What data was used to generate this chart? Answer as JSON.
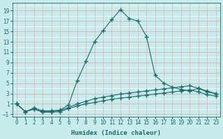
{
  "xlabel": "Humidex (Indice chaleur)",
  "background_color": "#c8ecec",
  "grid_color_major": "#dba8a8",
  "grid_color_minor": "#ffffff",
  "line_color": "#1a6b6b",
  "xlim": [
    -0.5,
    23.5
  ],
  "ylim": [
    -1.5,
    20.5
  ],
  "xticks": [
    0,
    1,
    2,
    3,
    4,
    5,
    6,
    7,
    8,
    9,
    10,
    11,
    12,
    13,
    14,
    15,
    16,
    17,
    18,
    19,
    20,
    21,
    22,
    23
  ],
  "yticks": [
    -1,
    1,
    3,
    5,
    7,
    9,
    11,
    13,
    15,
    17,
    19
  ],
  "line1_x": [
    0,
    1,
    2,
    3,
    4,
    5,
    6,
    7,
    8,
    9,
    10,
    11,
    12,
    13,
    14,
    15,
    16,
    17,
    18,
    19,
    20,
    21,
    22,
    23
  ],
  "line1_y": [
    1.0,
    -0.5,
    0.2,
    -0.3,
    -0.3,
    -0.2,
    0.8,
    5.5,
    9.2,
    13.0,
    15.2,
    17.3,
    19.2,
    17.5,
    17.0,
    14.0,
    6.5,
    5.0,
    4.2,
    3.8,
    3.5,
    4.0,
    3.5,
    3.0
  ],
  "line2_x": [
    0,
    1,
    2,
    3,
    4,
    5,
    6,
    7,
    8,
    9,
    10,
    11,
    12,
    13,
    14,
    15,
    16,
    17,
    18,
    19,
    20,
    21,
    22,
    23
  ],
  "line2_y": [
    1.0,
    -0.5,
    0.0,
    -0.5,
    -0.5,
    -0.3,
    0.3,
    1.0,
    1.5,
    2.0,
    2.3,
    2.6,
    2.9,
    3.1,
    3.3,
    3.5,
    3.7,
    3.9,
    4.1,
    4.3,
    4.5,
    4.0,
    3.3,
    3.0
  ],
  "line3_x": [
    0,
    1,
    2,
    3,
    4,
    5,
    6,
    7,
    8,
    9,
    10,
    11,
    12,
    13,
    14,
    15,
    16,
    17,
    18,
    19,
    20,
    21,
    22,
    23
  ],
  "line3_y": [
    1.0,
    -0.5,
    0.0,
    -0.6,
    -0.6,
    -0.5,
    0.1,
    0.6,
    1.0,
    1.3,
    1.6,
    1.9,
    2.1,
    2.3,
    2.5,
    2.7,
    2.9,
    3.1,
    3.3,
    3.5,
    3.7,
    3.3,
    2.8,
    2.5
  ]
}
